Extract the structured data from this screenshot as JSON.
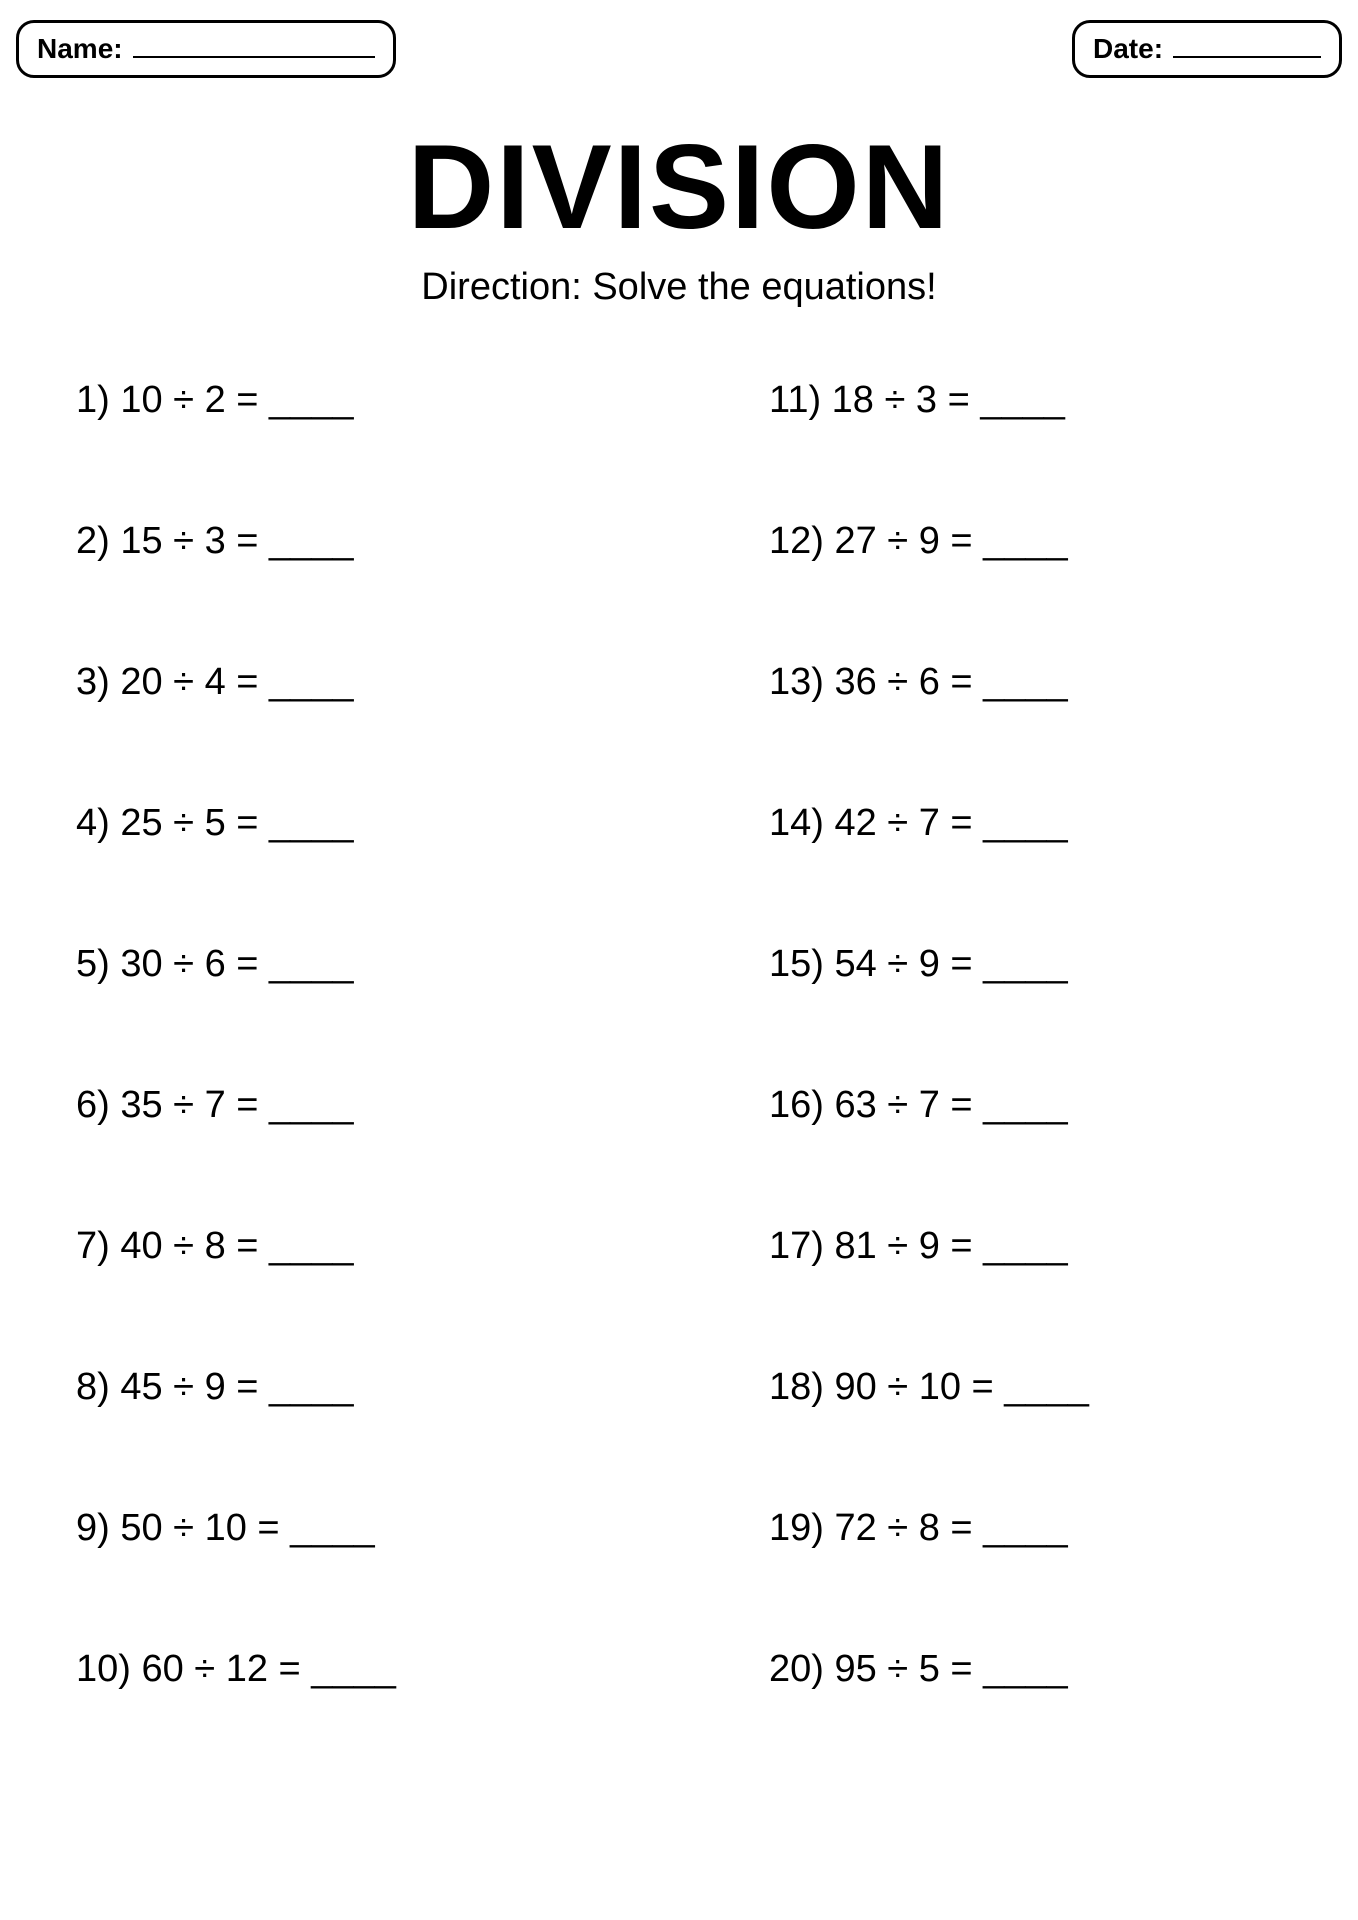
{
  "header": {
    "name_label": "Name:",
    "date_label": "Date:"
  },
  "title": "DIVISION",
  "direction": "Direction: Solve the equations!",
  "styling": {
    "background_color": "#ffffff",
    "text_color": "#000000",
    "border_color": "#000000",
    "title_fontsize": 120,
    "direction_fontsize": 38,
    "problem_fontsize": 38,
    "field_label_fontsize": 28,
    "box_border_radius": 18,
    "box_border_width": 3,
    "row_gap": 98
  },
  "problems": {
    "left": [
      {
        "num": "1)",
        "dividend": 10,
        "divisor": 2,
        "text": "1) 10 ÷ 2 = ____"
      },
      {
        "num": "2)",
        "dividend": 15,
        "divisor": 3,
        "text": "2) 15 ÷ 3 = ____"
      },
      {
        "num": "3)",
        "dividend": 20,
        "divisor": 4,
        "text": "3) 20 ÷ 4 = ____"
      },
      {
        "num": "4)",
        "dividend": 25,
        "divisor": 5,
        "text": "4) 25 ÷ 5 = ____"
      },
      {
        "num": "5)",
        "dividend": 30,
        "divisor": 6,
        "text": "5) 30 ÷ 6 = ____"
      },
      {
        "num": "6)",
        "dividend": 35,
        "divisor": 7,
        "text": "6) 35 ÷ 7 = ____"
      },
      {
        "num": "7)",
        "dividend": 40,
        "divisor": 8,
        "text": "7) 40 ÷ 8 = ____"
      },
      {
        "num": "8)",
        "dividend": 45,
        "divisor": 9,
        "text": "8) 45 ÷ 9 = ____"
      },
      {
        "num": "9)",
        "dividend": 50,
        "divisor": 10,
        "text": "9) 50 ÷ 10 = ____"
      },
      {
        "num": "10)",
        "dividend": 60,
        "divisor": 12,
        "text": "10) 60 ÷ 12 = ____"
      }
    ],
    "right": [
      {
        "num": "11)",
        "dividend": 18,
        "divisor": 3,
        "text": "11) 18 ÷ 3 = ____"
      },
      {
        "num": "12)",
        "dividend": 27,
        "divisor": 9,
        "text": "12) 27 ÷ 9 = ____"
      },
      {
        "num": "13)",
        "dividend": 36,
        "divisor": 6,
        "text": "13) 36 ÷ 6 = ____"
      },
      {
        "num": "14)",
        "dividend": 42,
        "divisor": 7,
        "text": "14) 42 ÷ 7 = ____"
      },
      {
        "num": "15)",
        "dividend": 54,
        "divisor": 9,
        "text": "15) 54 ÷ 9 = ____"
      },
      {
        "num": "16)",
        "dividend": 63,
        "divisor": 7,
        "text": "16) 63 ÷ 7 = ____"
      },
      {
        "num": "17)",
        "dividend": 81,
        "divisor": 9,
        "text": "17) 81 ÷ 9 = ____"
      },
      {
        "num": "18)",
        "dividend": 90,
        "divisor": 10,
        "text": "18) 90 ÷ 10 = ____"
      },
      {
        "num": "19)",
        "dividend": 72,
        "divisor": 8,
        "text": "19) 72 ÷ 8 = ____"
      },
      {
        "num": "20)",
        "dividend": 95,
        "divisor": 5,
        "text": "20) 95 ÷ 5 = ____"
      }
    ]
  }
}
